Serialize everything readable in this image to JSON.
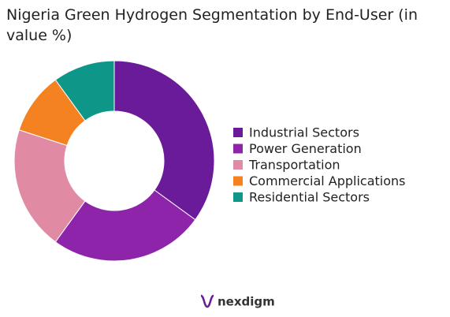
{
  "chart_data": {
    "type": "pie",
    "title": "Nigeria Green Hydrogen Segmentation by End-User (in value %)",
    "categories": [
      "Industrial Sectors",
      "Power Generation",
      "Transportation",
      "Commercial Applications",
      "Residential Sectors"
    ],
    "values": [
      35,
      25,
      20,
      10,
      10
    ],
    "colors": [
      "#6a1b9a",
      "#8e24aa",
      "#e08aa4",
      "#f58220",
      "#0e9688"
    ],
    "legend": "right"
  },
  "footer": {
    "logo": "nexdigm"
  }
}
